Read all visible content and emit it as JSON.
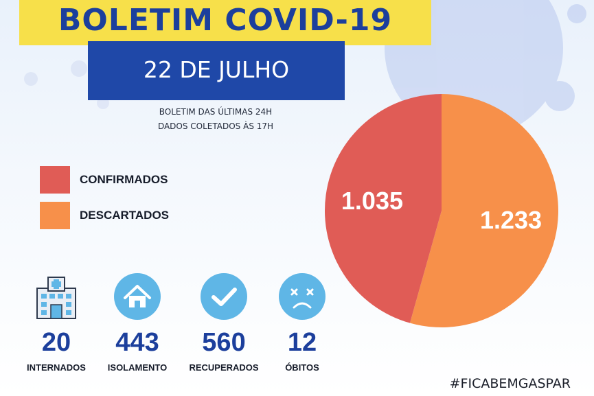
{
  "header": {
    "title": "BOLETIM COVID-19",
    "date": "22 DE JULHO",
    "subtitle_line1": "BOLETIM DAS ÚLTIMAS 24H",
    "subtitle_line2": "DADOS COLETADOS ÀS  17H"
  },
  "colors": {
    "title_band": "#f7e04a",
    "date_band": "#1f48a8",
    "confirmados": "#e05c56",
    "descartados": "#f7904a",
    "stat_blue": "#1c3f9c",
    "icon_circle": "#5fb6e6"
  },
  "chart_data": {
    "type": "pie",
    "title": "",
    "legend": [
      "CONFIRMADOS",
      "DESCARTADOS"
    ],
    "legend_position": "left",
    "series": [
      {
        "name": "CONFIRMADOS",
        "value": 1035,
        "label": "1.035",
        "color": "#e05c56"
      },
      {
        "name": "DESCARTADOS",
        "value": 1233,
        "label": "1.233",
        "color": "#f7904a"
      }
    ]
  },
  "stats": [
    {
      "value": "20",
      "label": "INTERNADOS",
      "icon": "hospital-icon"
    },
    {
      "value": "443",
      "label": "ISOLAMENTO",
      "icon": "house-icon"
    },
    {
      "value": "560",
      "label": "RECUPERADOS",
      "icon": "checkmark-icon"
    },
    {
      "value": "12",
      "label": "ÓBITOS",
      "icon": "sad-face-icon"
    }
  ],
  "footer": {
    "hashtag": "#FICABEMGASPAR"
  }
}
